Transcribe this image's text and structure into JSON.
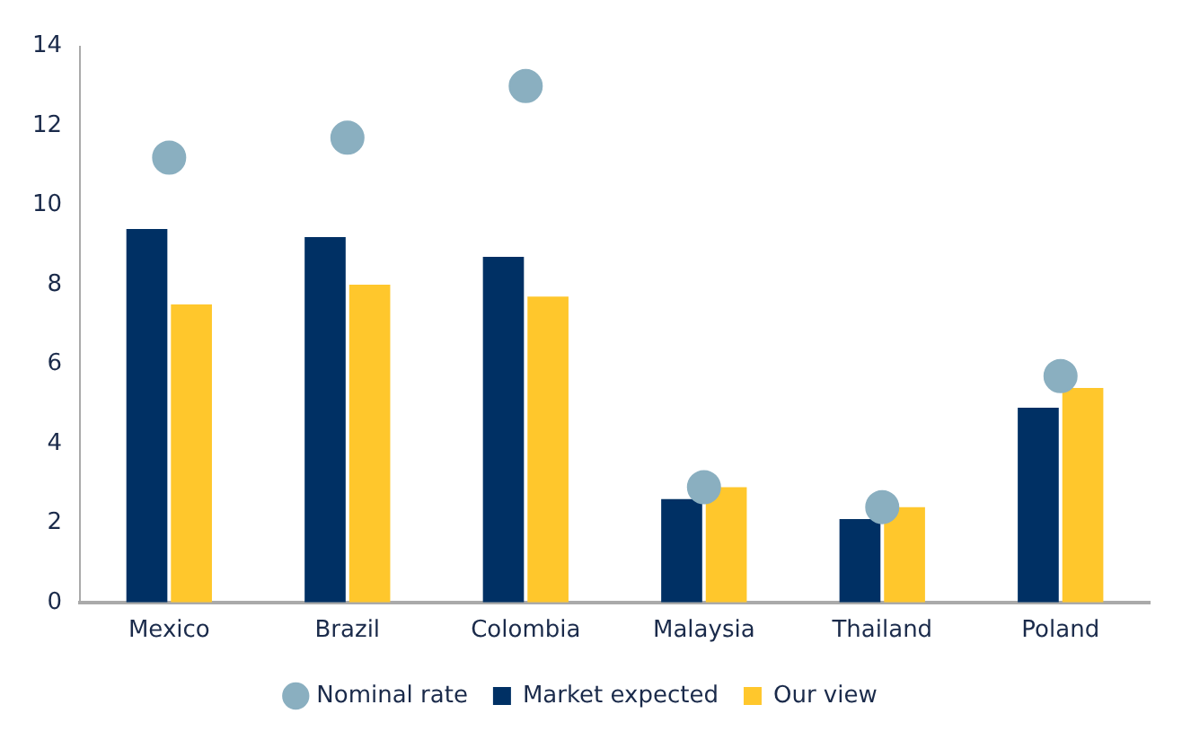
{
  "chart_data": {
    "type": "bar",
    "categories": [
      "Mexico",
      "Brazil",
      "Colombia",
      "Malaysia",
      "Thailand",
      "Poland"
    ],
    "series": [
      {
        "name": "Market expected",
        "color": "#003064",
        "values": [
          9.4,
          9.2,
          8.7,
          2.6,
          2.1,
          4.9
        ]
      },
      {
        "name": "Our view",
        "color": "#ffc72c",
        "values": [
          7.5,
          8.0,
          7.7,
          2.9,
          2.4,
          5.4
        ]
      },
      {
        "name": "Nominal rate",
        "type": "scatter",
        "color": "#8aafc0",
        "values": [
          11.2,
          11.7,
          13.0,
          2.9,
          2.4,
          5.7
        ]
      }
    ],
    "ylim": [
      0,
      14
    ],
    "yticks": [
      0,
      2,
      4,
      6,
      8,
      10,
      12,
      14
    ],
    "grid": false,
    "legend": "bottom",
    "marker": "circle"
  }
}
